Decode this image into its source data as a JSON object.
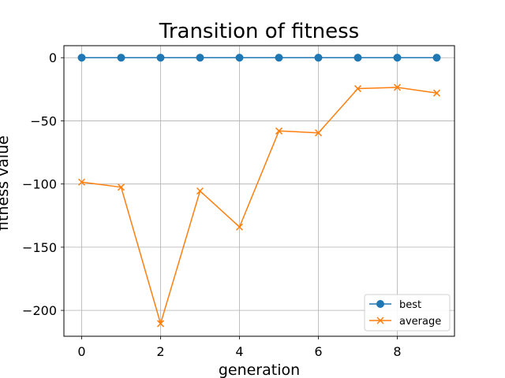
{
  "chart_data": {
    "type": "line",
    "title": "Transition of fitness",
    "xlabel": "generation",
    "ylabel": "fitness value",
    "x": [
      0,
      1,
      2,
      3,
      4,
      5,
      6,
      7,
      8,
      9
    ],
    "xlim": [
      -0.45,
      9.45
    ],
    "ylim": [
      -220.5,
      9.5
    ],
    "xticks": [
      0,
      2,
      4,
      6,
      8
    ],
    "yticks": [
      0,
      -50,
      -100,
      -150,
      -200
    ],
    "xtick_labels": [
      "0",
      "2",
      "4",
      "6",
      "8"
    ],
    "ytick_labels": [
      "0",
      "−50",
      "−100",
      "−150",
      "−200"
    ],
    "grid": true,
    "legend_position": "lower-right",
    "series": [
      {
        "name": "best",
        "marker": "circle",
        "color": "#1f77b4",
        "values": [
          0,
          0,
          0,
          0,
          0,
          0,
          0,
          0,
          0,
          0
        ]
      },
      {
        "name": "average",
        "marker": "x",
        "color": "#ff7f0e",
        "values": [
          -98.5,
          -102.5,
          -210.5,
          -105.5,
          -134,
          -58,
          -59.5,
          -24.5,
          -23.5,
          -28
        ]
      }
    ]
  }
}
